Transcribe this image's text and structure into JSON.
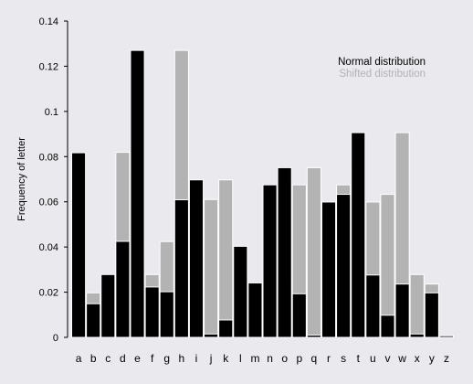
{
  "chart_data": {
    "type": "bar",
    "title": "",
    "xlabel": "",
    "ylabel": "Frequency of letter",
    "ylim": [
      0,
      0.14
    ],
    "yticks": [
      0,
      0.02,
      0.04,
      0.06,
      0.08,
      0.1,
      0.12,
      0.14
    ],
    "ytick_labels": [
      "0",
      "0.02",
      "0.04",
      "0.06",
      "0.08",
      "0.1",
      "0.12",
      "0.14"
    ],
    "grid": false,
    "legend_position": "top-right",
    "categories": [
      "a",
      "b",
      "c",
      "d",
      "e",
      "f",
      "g",
      "h",
      "i",
      "j",
      "k",
      "l",
      "m",
      "n",
      "o",
      "p",
      "q",
      "r",
      "s",
      "t",
      "u",
      "v",
      "w",
      "x",
      "y",
      "z"
    ],
    "series": [
      {
        "name": "Shifted distribution",
        "color": "#b3b3b3",
        "values": [
          0.0007,
          0.0197,
          0.0015,
          0.0819,
          0.0424,
          0.0278,
          0.0424,
          0.127,
          0.0202,
          0.061,
          0.0697,
          0.0007,
          0.002,
          0.0401,
          0.0236,
          0.0675,
          0.0751,
          0.0243,
          0.0675,
          0.0751,
          0.0599,
          0.0633,
          0.0906,
          0.0278,
          0.0236,
          0.0007
        ]
      },
      {
        "name": "Normal distribution",
        "color": "#000000",
        "values": [
          0.0817,
          0.0149,
          0.0278,
          0.0425,
          0.127,
          0.0223,
          0.0202,
          0.0609,
          0.0697,
          0.0015,
          0.0077,
          0.0403,
          0.0241,
          0.0675,
          0.0751,
          0.0193,
          0.001,
          0.0599,
          0.0633,
          0.0906,
          0.0276,
          0.0098,
          0.0236,
          0.0015,
          0.0197,
          0.0007
        ]
      }
    ]
  }
}
